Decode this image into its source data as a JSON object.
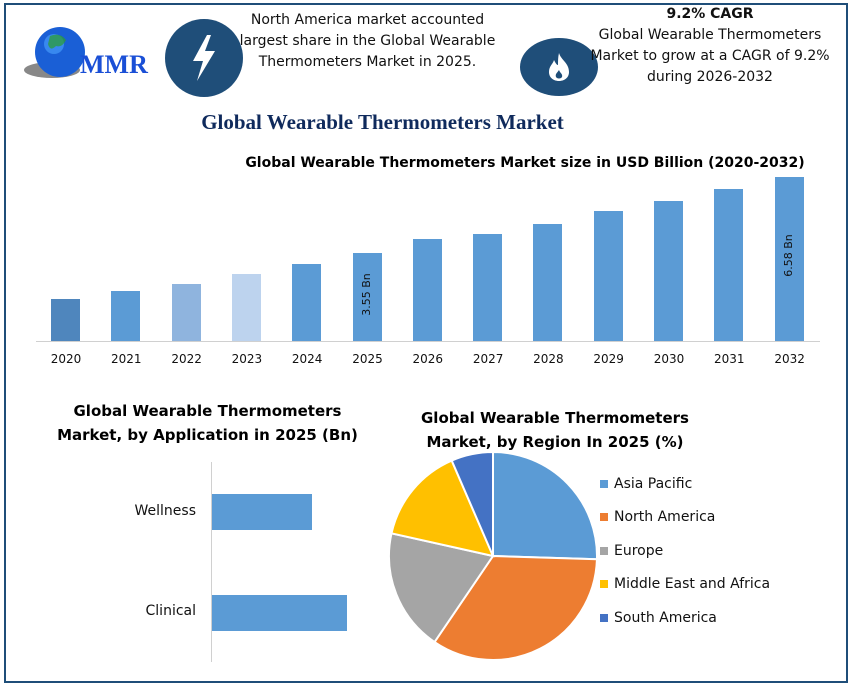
{
  "header": {
    "logo_text": "MMR",
    "info_left": {
      "icon": "lightning-icon",
      "lines": [
        "North America market accounted",
        "largest share in the Global Wearable",
        "Thermometers Market in 2025."
      ]
    },
    "info_right": {
      "icon": "flame-icon",
      "headline": "9.2% CAGR",
      "lines": [
        "Global Wearable Thermometers",
        "Market to grow at a CAGR of 9.2%",
        "during 2026-2032"
      ]
    },
    "main_title": "Global Wearable Thermometers Market"
  },
  "colors": {
    "frame": "#1f4e79",
    "icon_circle": "#1f4e79",
    "title": "#0f2a5c",
    "bar_main": "#5b9bd5",
    "asia_pacific": "#5b9bd5",
    "north_america": "#ed7d31",
    "europe": "#a5a5a5",
    "middle_east_africa": "#ffc000",
    "south_america": "#4472c4"
  },
  "chart_data": [
    {
      "type": "bar",
      "title": "Global Wearable Thermometers Market size in USD Billion (2020-2032)",
      "xlabel": "",
      "ylabel": "USD Billion",
      "categories": [
        "2020",
        "2021",
        "2022",
        "2023",
        "2024",
        "2025",
        "2026",
        "2027",
        "2028",
        "2029",
        "2030",
        "2031",
        "2032"
      ],
      "values": [
        1.7,
        2.0,
        2.3,
        2.7,
        3.1,
        3.55,
        4.1,
        4.3,
        4.7,
        5.2,
        5.6,
        6.1,
        6.58
      ],
      "bar_colors": [
        "#4f86bd",
        "#5b9bd5",
        "#8fb4de",
        "#bdd3ee",
        "#5b9bd5",
        "#5b9bd5",
        "#5b9bd5",
        "#5b9bd5",
        "#5b9bd5",
        "#5b9bd5",
        "#5b9bd5",
        "#5b9bd5",
        "#5b9bd5"
      ],
      "data_labels": {
        "2025": "3.55 Bn",
        "2032": "6.58 Bn"
      },
      "ylim": [
        0,
        7
      ],
      "grid": false
    },
    {
      "type": "bar",
      "orientation": "horizontal",
      "title": "Global Wearable Thermometers Market, by Application in 2025 (Bn)",
      "categories": [
        "Wellness",
        "Clinical"
      ],
      "values": [
        1.5,
        2.05
      ]
    },
    {
      "type": "pie",
      "title": "Global Wearable Thermometers Market, by Region In 2025 (%)",
      "categories": [
        "Asia Pacific",
        "North America",
        "Europe",
        "Middle East and Africa",
        "South America"
      ],
      "values": [
        25.5,
        34,
        19,
        15,
        6.5
      ],
      "legend_position": "right"
    }
  ],
  "bar_chart": {
    "title": "Global Wearable Thermometers Market size in USD Billion (2020-2032)",
    "years": [
      "2020",
      "2021",
      "2022",
      "2023",
      "2024",
      "2025",
      "2026",
      "2027",
      "2028",
      "2029",
      "2030",
      "2031",
      "2032"
    ],
    "label_2025": "3.55 Bn",
    "label_2032": "6.58 Bn"
  },
  "app_chart": {
    "title_line1": "Global Wearable Thermometers",
    "title_line2": "Market, by Application in 2025 (Bn)",
    "labels": [
      "Wellness",
      "Clinical"
    ]
  },
  "region_chart": {
    "title_line1": "Global Wearable Thermometers",
    "title_line2": "Market, by Region In 2025 (%)",
    "legend": [
      "Asia Pacific",
      "North America",
      "Europe",
      "Middle East and Africa",
      "South America"
    ]
  }
}
